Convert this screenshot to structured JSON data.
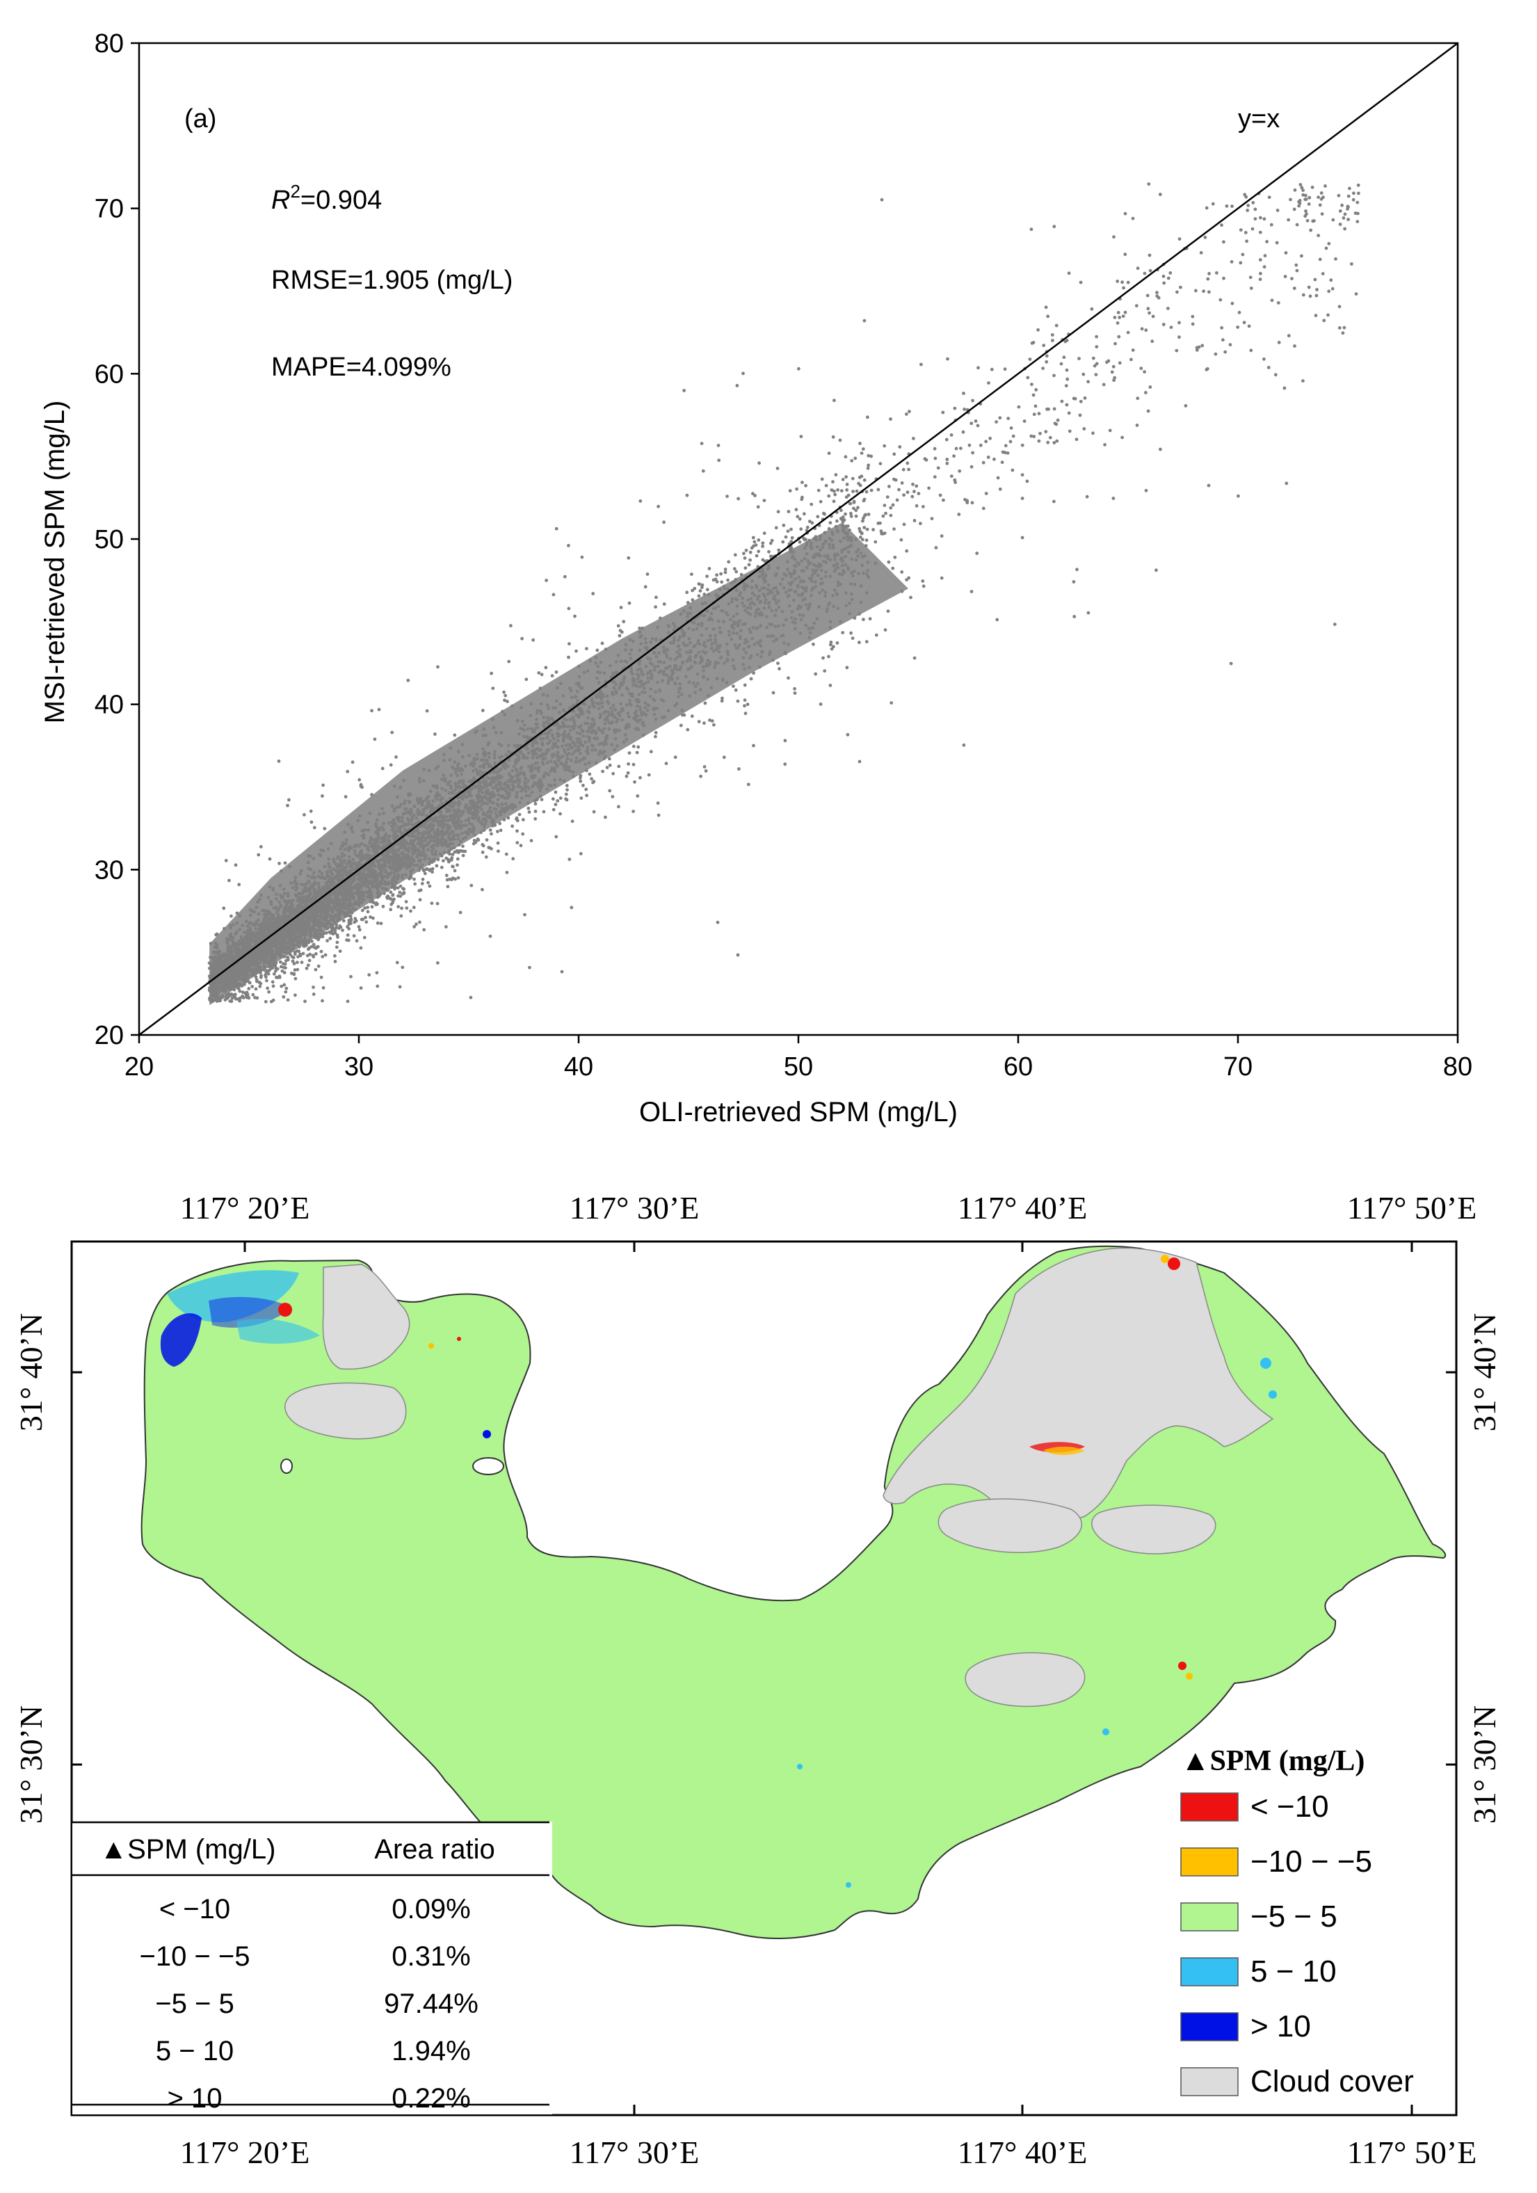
{
  "chart_data": [
    {
      "type": "scatter",
      "panel_label": "(a)",
      "xlabel": "OLI-retrieved SPM (mg/L)",
      "ylabel": "MSI-retrieved SPM (mg/L)",
      "xlim": [
        20,
        80
      ],
      "ylim": [
        20,
        80
      ],
      "xticks": [
        "20",
        "30",
        "40",
        "50",
        "60",
        "70",
        "80"
      ],
      "yticks": [
        "20",
        "30",
        "40",
        "50",
        "60",
        "70",
        "80"
      ],
      "reference_line": {
        "label": "y=x",
        "slope": 1,
        "intercept": 0
      },
      "stats": {
        "r2_prefix": "R",
        "r2_sup": "2",
        "r2_value": "=0.904",
        "rmse": "RMSE=1.905 (mg/L)",
        "mape": "MAPE=4.099%"
      },
      "point_color": "#808080",
      "point_distribution": {
        "x_range": [
          21.5,
          75.5
        ],
        "y_range": [
          22,
          71.5
        ],
        "core_cluster": {
          "x_min": 23,
          "x_max": 75,
          "relation": "y ≈ 0.92·x + 1.8"
        }
      }
    },
    {
      "type": "map",
      "top_lon_labels": [
        "117° 20’E",
        "117° 30’E",
        "117° 40’E",
        "117° 50’E"
      ],
      "bottom_lon_labels": [
        "117° 20’E",
        "117° 30’E",
        "117° 40’E",
        "117° 50’E"
      ],
      "left_lat_labels": [
        "31° 40’N",
        "31° 30’N"
      ],
      "right_lat_labels": [
        "31° 40’N",
        "31° 30’N"
      ],
      "legend": {
        "title": "▲SPM (mg/L)",
        "items": [
          {
            "label": "< −10",
            "color": "#ee1111"
          },
          {
            "label": "−10 − −5",
            "color": "#ffc000"
          },
          {
            "label": "−5 − 5",
            "color": "#b0f590"
          },
          {
            "label": "5 − 10",
            "color": "#34c0f2"
          },
          {
            "label": "> 10",
            "color": "#0011e6"
          },
          {
            "label": "Cloud cover",
            "color": "#dcdcdc"
          }
        ]
      },
      "area_table": {
        "headers": [
          "▲SPM (mg/L)",
          "Area ratio"
        ],
        "rows": [
          {
            "range": "< −10",
            "ratio": "0.09%"
          },
          {
            "range": "−10 − −5",
            "ratio": "0.31%"
          },
          {
            "range": "−5 − 5",
            "ratio": "97.44%"
          },
          {
            "range": "5 − 10",
            "ratio": "1.94%"
          },
          {
            "range": "> 10",
            "ratio": "0.22%"
          }
        ]
      }
    }
  ]
}
